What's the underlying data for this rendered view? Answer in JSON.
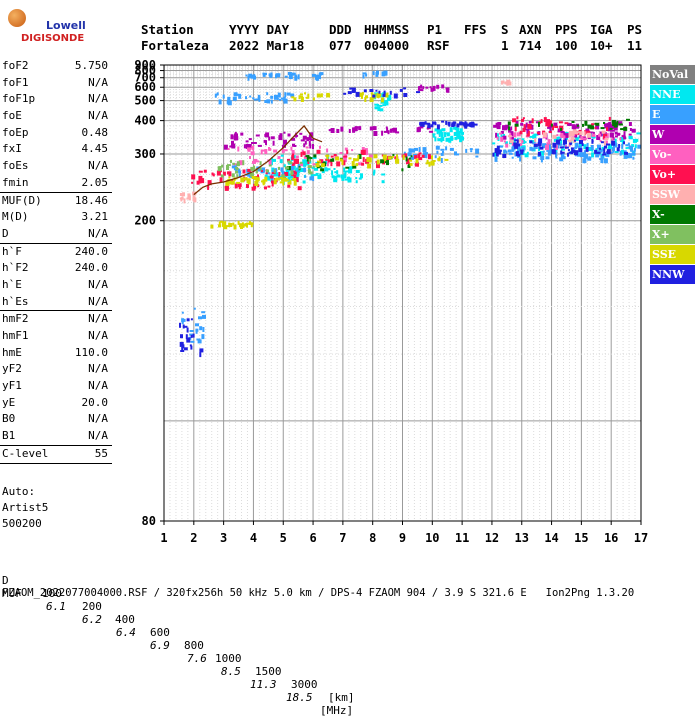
{
  "logo": {
    "line1": "Lowell",
    "line2": "DIGISONDE"
  },
  "header": {
    "labels": [
      "Station",
      "YYYY DAY",
      "DDD",
      "HHMMSS",
      "P1",
      "FFS",
      "S",
      "AXN",
      "PPS",
      "IGA",
      "PS"
    ],
    "values": [
      "Fortaleza",
      "2022 Mar18",
      "077",
      "004000",
      "RSF",
      "1",
      "714",
      "100",
      "10+",
      "11"
    ]
  },
  "params_group1": [
    {
      "name": "foF2",
      "value": "5.750"
    },
    {
      "name": "foF1",
      "value": "N/A"
    },
    {
      "name": "foF1p",
      "value": "N/A"
    },
    {
      "name": "foE",
      "value": "N/A"
    },
    {
      "name": "foEp",
      "value": "0.48"
    },
    {
      "name": "fxI",
      "value": "4.45"
    },
    {
      "name": "foEs",
      "value": "N/A"
    },
    {
      "name": "fmin",
      "value": "2.05"
    }
  ],
  "params_group2": [
    {
      "name": "MUF(D)",
      "value": "18.46"
    },
    {
      "name": "M(D)",
      "value": "3.21"
    },
    {
      "name": "D",
      "value": "N/A"
    }
  ],
  "params_group3": [
    {
      "name": "h`F",
      "value": "240.0"
    },
    {
      "name": "h`F2",
      "value": "240.0"
    },
    {
      "name": "h`E",
      "value": "N/A"
    },
    {
      "name": "h`Es",
      "value": "N/A"
    }
  ],
  "params_group4": [
    {
      "name": "hmF2",
      "value": "N/A"
    },
    {
      "name": "hmF1",
      "value": "N/A"
    },
    {
      "name": "hmE",
      "value": "110.0"
    },
    {
      "name": "yF2",
      "value": "N/A"
    },
    {
      "name": "yF1",
      "value": "N/A"
    },
    {
      "name": "yE",
      "value": "20.0"
    },
    {
      "name": "B0",
      "value": "N/A"
    },
    {
      "name": "B1",
      "value": "N/A"
    }
  ],
  "params_group5": [
    {
      "name": "C-level",
      "value": "55"
    }
  ],
  "auto": [
    "Auto:",
    "Artist5",
    "500200"
  ],
  "legend": [
    {
      "label": "NoVal",
      "bg": "#808080",
      "fg": "#ffffff"
    },
    {
      "label": "NNE",
      "bg": "#00e8f0",
      "fg": "#ffffff"
    },
    {
      "label": "E",
      "bg": "#38a0ff",
      "fg": "#ffffff"
    },
    {
      "label": "W",
      "bg": "#b000b0",
      "fg": "#ffffff"
    },
    {
      "label": "Vo-",
      "bg": "#ff60c0",
      "fg": "#ffffff"
    },
    {
      "label": "Vo+",
      "bg": "#ff1050",
      "fg": "#ffffff"
    },
    {
      "label": "SSW",
      "bg": "#ffb0b0",
      "fg": "#ffffff"
    },
    {
      "label": "X-",
      "bg": "#007800",
      "fg": "#ffffff"
    },
    {
      "label": "X+",
      "bg": "#80c060",
      "fg": "#ffffff"
    },
    {
      "label": "SSE",
      "bg": "#d8d800",
      "fg": "#ffffff"
    },
    {
      "label": "NNW",
      "bg": "#2020e0",
      "fg": "#ffffff"
    }
  ],
  "footer": {
    "d_label": "D",
    "d_values": [
      "100",
      "200",
      "400",
      "600",
      "800",
      "1000",
      "1500",
      "3000"
    ],
    "d_unit": "[km]",
    "muf_label": "MUF",
    "muf_values": [
      "6.1",
      "6.2",
      "6.4",
      "6.9",
      "7.6",
      "8.5",
      "11.3",
      "18.5"
    ],
    "muf_unit": "[MHz]",
    "file_line": "FZAOM_2022077004000.RSF / 320fx256h 50 kHz 5.0 km / DPS-4 FZAOM 904 / 3.9 S 321.6 E   Ion2Png 1.3.20"
  },
  "chart_data": {
    "type": "scatter",
    "title": "",
    "xlabel": "",
    "ylabel": "",
    "xlim": [
      1,
      17
    ],
    "ylim": [
      80,
      900
    ],
    "x_ticks": [
      1,
      2,
      3,
      4,
      5,
      6,
      7,
      8,
      9,
      10,
      11,
      12,
      13,
      14,
      15,
      16,
      17
    ],
    "y_ticks": [
      80,
      200,
      300,
      400,
      500,
      600,
      700,
      800,
      900
    ],
    "y_scale": "reciprocal",
    "grid": true,
    "legend_position": "right",
    "trace_line": {
      "color": "#7a3000",
      "points": [
        [
          2.0,
          230
        ],
        [
          2.3,
          240
        ],
        [
          2.6,
          245
        ],
        [
          3.0,
          248
        ],
        [
          3.5,
          255
        ],
        [
          4.0,
          265
        ],
        [
          4.5,
          285
        ],
        [
          5.0,
          315
        ],
        [
          5.4,
          350
        ],
        [
          5.7,
          380
        ],
        [
          6.0,
          340
        ],
        [
          6.3,
          330
        ]
      ]
    },
    "series": [
      {
        "name": "NNE",
        "color": "#00e8f0",
        "clusters": [
          [
            4.2,
            8.4,
            250,
            275,
            70
          ],
          [
            8.0,
            8.5,
            450,
            560,
            25
          ],
          [
            10.0,
            11.0,
            340,
            380,
            40
          ],
          [
            12.0,
            16.9,
            300,
            360,
            90
          ],
          [
            4.5,
            6.5,
            270,
            300,
            30
          ]
        ]
      },
      {
        "name": "E",
        "color": "#38a0ff",
        "clusters": [
          [
            3.5,
            6.3,
            720,
            780,
            30
          ],
          [
            2.6,
            5.5,
            500,
            560,
            40
          ],
          [
            1.5,
            2.3,
            125,
            140,
            20
          ],
          [
            12.0,
            16.9,
            290,
            330,
            110
          ],
          [
            9.0,
            11.5,
            290,
            320,
            30
          ],
          [
            3.0,
            6.0,
            255,
            280,
            40
          ],
          [
            7.6,
            8.6,
            740,
            800,
            10
          ]
        ]
      },
      {
        "name": "W",
        "color": "#b000b0",
        "clusters": [
          [
            3.0,
            6.0,
            320,
            360,
            50
          ],
          [
            12.0,
            16.8,
            340,
            400,
            90
          ],
          [
            6.5,
            10.0,
            360,
            380,
            30
          ],
          [
            9.5,
            10.5,
            580,
            640,
            15
          ]
        ]
      },
      {
        "name": "Vo-",
        "color": "#ff60c0",
        "clusters": [
          [
            3.0,
            8.0,
            280,
            320,
            50
          ],
          [
            12.0,
            16.5,
            320,
            360,
            40
          ]
        ]
      },
      {
        "name": "Vo+",
        "color": "#ff1050",
        "clusters": [
          [
            1.9,
            5.5,
            240,
            270,
            60
          ],
          [
            5.0,
            10.0,
            280,
            310,
            50
          ],
          [
            12.5,
            16.0,
            350,
            420,
            40
          ]
        ]
      },
      {
        "name": "SSW",
        "color": "#ffb0b0",
        "clusters": [
          [
            1.5,
            2.0,
            225,
            235,
            15
          ],
          [
            12.5,
            16.0,
            330,
            370,
            25
          ],
          [
            12.3,
            12.6,
            640,
            680,
            6
          ]
        ]
      },
      {
        "name": "X-",
        "color": "#007800",
        "clusters": [
          [
            5.0,
            10.0,
            270,
            300,
            30
          ],
          [
            12.5,
            16.5,
            370,
            410,
            25
          ]
        ]
      },
      {
        "name": "X+",
        "color": "#80c060",
        "clusters": [
          [
            2.8,
            6.0,
            260,
            290,
            40
          ]
        ]
      },
      {
        "name": "SSE",
        "color": "#d8d800",
        "clusters": [
          [
            2.5,
            4.0,
            195,
            200,
            25
          ],
          [
            3.0,
            5.5,
            248,
            258,
            40
          ],
          [
            7.5,
            8.5,
            520,
            560,
            20
          ],
          [
            6.0,
            10.5,
            280,
            300,
            40
          ],
          [
            5.0,
            6.5,
            520,
            560,
            15
          ]
        ]
      },
      {
        "name": "NNW",
        "color": "#2020e0",
        "clusters": [
          [
            9.5,
            11.5,
            385,
            400,
            40
          ],
          [
            12.0,
            16.5,
            300,
            340,
            70
          ],
          [
            7.0,
            9.5,
            540,
            600,
            20
          ],
          [
            1.5,
            2.2,
            120,
            135,
            20
          ]
        ]
      }
    ]
  }
}
